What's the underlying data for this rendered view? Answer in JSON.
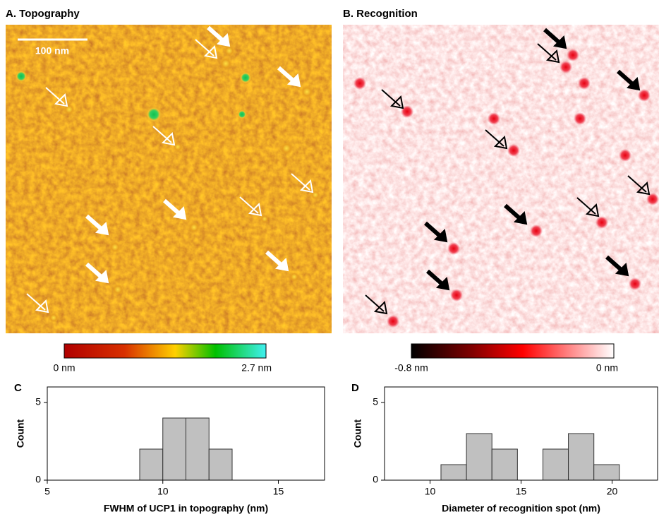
{
  "images": [
    {
      "title": "A. Topography",
      "scale_bar": "100 nm",
      "colorbar": {
        "min_label": "0 nm",
        "max_label": "2.7 nm"
      }
    },
    {
      "title": "B. Recognition",
      "colorbar": {
        "min_label": "-0.8 nm",
        "max_label": "0 nm"
      }
    }
  ],
  "chart_data": [
    {
      "type": "histogram",
      "panel": "C",
      "xlabel": "FWHM of UCP1 in topography (nm)",
      "ylabel": "Count",
      "bins": [
        9,
        10,
        11,
        12,
        13
      ],
      "counts": [
        2,
        4,
        4,
        2
      ],
      "color": "#c0c0c0",
      "xlim": [
        5,
        17
      ],
      "xticks": [
        5,
        10,
        15
      ],
      "ylim": [
        0,
        6
      ],
      "yticks": [
        0,
        5
      ]
    },
    {
      "type": "histogram",
      "panel": "D",
      "xlabel": "Diameter of recognition spot (nm)",
      "ylabel": "Count",
      "bins": [
        10.6,
        12.0,
        13.4,
        14.8,
        16.2,
        17.6,
        19.0,
        20.4
      ],
      "counts": [
        1,
        3,
        2,
        0,
        2,
        3,
        1
      ],
      "color": "#c0c0c0",
      "xlim": [
        7.5,
        22.5
      ],
      "xticks": [
        10,
        15,
        20
      ],
      "ylim": [
        0,
        6
      ],
      "yticks": [
        0,
        5
      ]
    }
  ]
}
